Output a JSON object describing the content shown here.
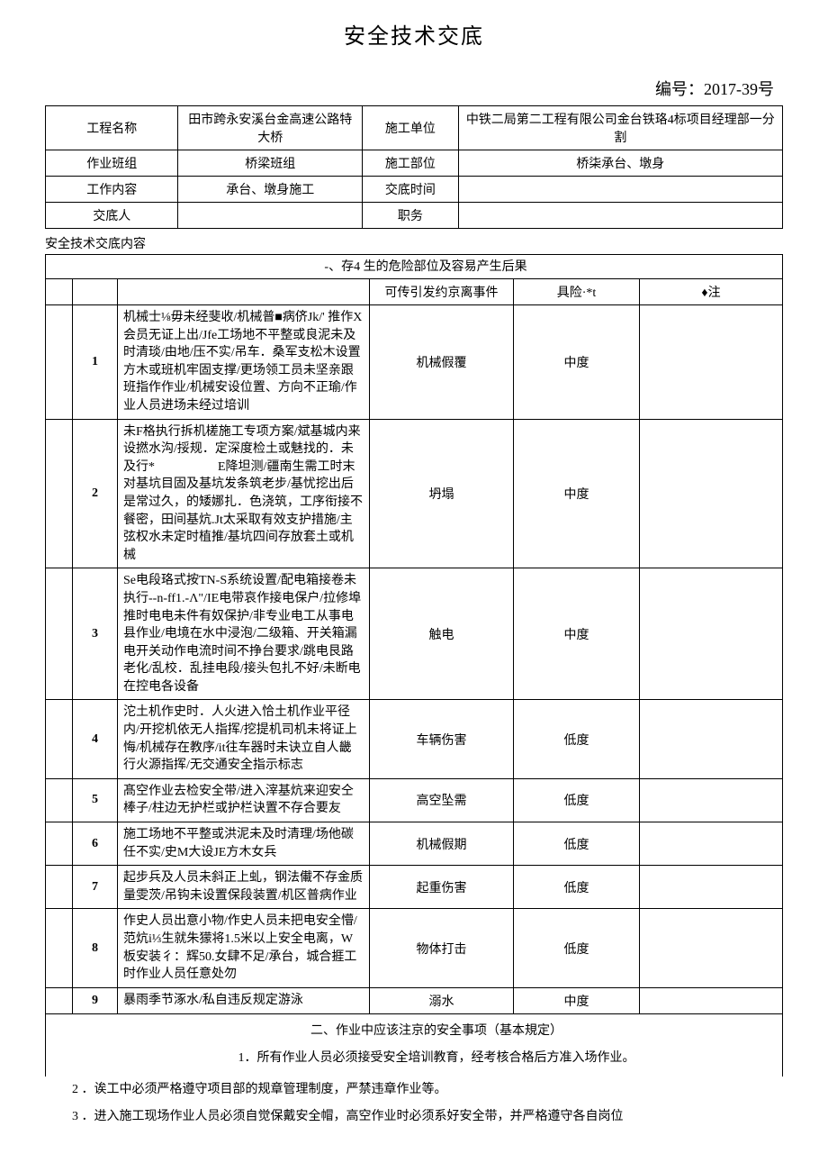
{
  "title": "安全技术交底",
  "doc_number": "编号：2017-39号",
  "header": {
    "labels": {
      "project_name": "工程名称",
      "construction_unit": "施工单位",
      "work_team": "作业班组",
      "construction_part": "施工部位",
      "work_content": "工作内容",
      "disclosure_time": "交底时间",
      "discloser": "交底人",
      "position": "职务"
    },
    "values": {
      "project_name": "田市跨永安溪台金高速公路特大桥",
      "construction_unit": "中铁二局第二工程有限公司金台铁珞4标项目经理部一分割",
      "work_team": "桥梁班组",
      "construction_part": "桥柒承台、墩身",
      "work_content": "承台、墩身施工",
      "disclosure_time": "",
      "discloser": "",
      "position": ""
    }
  },
  "content_title": "安全技术交底内容",
  "section1_title": "-、存4 生的危险部位及容易产生后果",
  "risk_table": {
    "headers": {
      "event": "可传引发约京离事件",
      "risk": "具险·*t",
      "note": "♦注"
    },
    "rows": [
      {
        "num": "1",
        "desc": "机械士⅛毋未经斐收/机械普■病侪Jk/' 推作X会员无证上出/Jfe工场地不平整或良泥未及时清琰/由地/压不实/吊车．桑军支松木设置方木或班机牢固支撑/更场领工员未坚亲跟班指作作业/机械安设位置、方向不正瑜/作业人员进场未经过培训",
        "event": "机械假覆",
        "risk": "中度",
        "note": ""
      },
      {
        "num": "2",
        "desc": "未F格执行拆机槎施工专项方案/斌基城内来设撚水沟/挼规．定深度检土或魅找的．未及行*　　　　　E降坦测/疆南生需工时末对基坑目固及基坑发条筑老步/基忧挖出后是常过久，的矮娜扎．色浇筑，工序衔接不餐密，田间基炕.Jt太采取有效支护措施/主弦权水未定时植推/基坑四间存放套土或机械",
        "event": "坍塌",
        "risk": "中度",
        "note": ""
      },
      {
        "num": "3",
        "desc": "Se电段珞式按TN-S系统设置/配电箱接卷未执行--n-ff1.-Λ\"/IE电带哀作接电保户/拉修埠推时电电未件有奴保护/非专业电工从事电县作业/电境在水中浸泡/二级箱、开关箱漏电开关动作电流时间不挣台要求/跳电艮路老化/乱校．乱挂电段/接头包扎不好/未断电在控电各设备",
        "event": "触电",
        "risk": "中度",
        "note": ""
      },
      {
        "num": "4",
        "desc": "沱土机作史时．人火进入恰土机作业平径内/开挖机依无人指挥/挖提机司机未将证上悔/机械存在教序/it往车器时未诀立自人畿行火源指挥/无交通安全指示标志",
        "event": "车辆伤害",
        "risk": "低度",
        "note": ""
      },
      {
        "num": "5",
        "desc": "髙空作业去检安全带/进入滓基炕来迎安仝棒子/柱边无护栏或护栏诀置不存合要友",
        "event": "高空坠需",
        "risk": "低度",
        "note": ""
      },
      {
        "num": "6",
        "desc": "施工场地不平整或洪泥未及时清理/场他碳任不实/史M大设JE方木女兵",
        "event": "机械假期",
        "risk": "低度",
        "note": ""
      },
      {
        "num": "7",
        "desc": "起步兵及人员未斜正上虬，钢法儎不存金质量雯茨/吊钩未设置保段装置/机区普病作业",
        "event": "起重伤害",
        "risk": "低度",
        "note": ""
      },
      {
        "num": "8",
        "desc": "作史人员出意小物/作史人员未把电安全懵/范炕i⅓生就朱獴将1.5米以上安全电离，W板安装彳：辉50.女肆不足/承台，城合捱工时作业人员任意处勿",
        "event": "物体打击",
        "risk": "低度",
        "note": ""
      },
      {
        "num": "9",
        "desc": "暴雨季节涿水/私自违反规定游泳",
        "event": "溺水",
        "risk": "中度",
        "note": ""
      }
    ]
  },
  "section2_title": "二、作业中应该注京的安全事项（基本規定）",
  "notes": [
    "1．所有作业人员必须接受安全培训教育，经考核合格后方准入场作业。",
    "2 ．诶工中必须严格遵守项目部的规章管理制度，严禁违章作业等。",
    "3 ．进入施工现场作业人员必须自觉保戴安全帽，高空作业时必须系好安全带，并严格遵守各自岗位"
  ],
  "styling": {
    "font_family": "SimSun",
    "border_color": "#000000",
    "background_color": "#ffffff",
    "title_fontsize": 24,
    "body_fontsize": 14,
    "doc_number_fontsize": 18
  }
}
